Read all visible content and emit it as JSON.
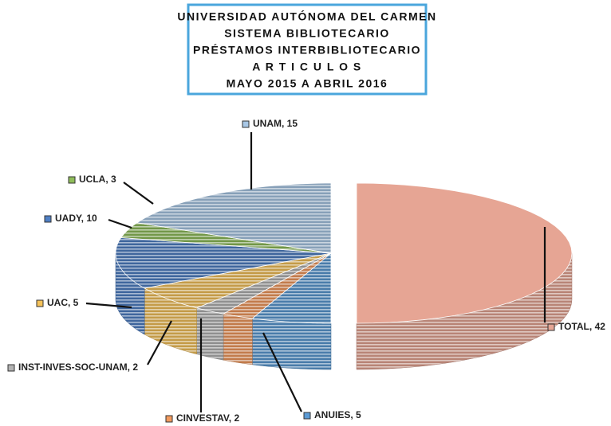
{
  "chart_data": {
    "type": "pie",
    "title": [
      "UNIVERSIDAD AUTÓNOMA DEL CARMEN",
      "SISTEMA BIBLIOTECARIO",
      "PRÉSTAMOS INTERBIBLIOTECARIO",
      "A R T I C U L O S",
      "MAYO 2015 A ABRIL 2016"
    ],
    "categories": [
      "TOTAL",
      "ANUIES",
      "CINVESTAV",
      "INST-INVES-SOC-UNAM",
      "UAC",
      "UADY",
      "UCLA",
      "UNAM"
    ],
    "values": [
      42,
      5,
      2,
      2,
      5,
      10,
      3,
      15
    ],
    "colors": [
      "#e6a594",
      "#5b9bd5",
      "#f29a5e",
      "#b3b3b3",
      "#f5c25a",
      "#4f7fc4",
      "#8fbd5a",
      "#a9c8e6"
    ],
    "legend": "labels"
  }
}
